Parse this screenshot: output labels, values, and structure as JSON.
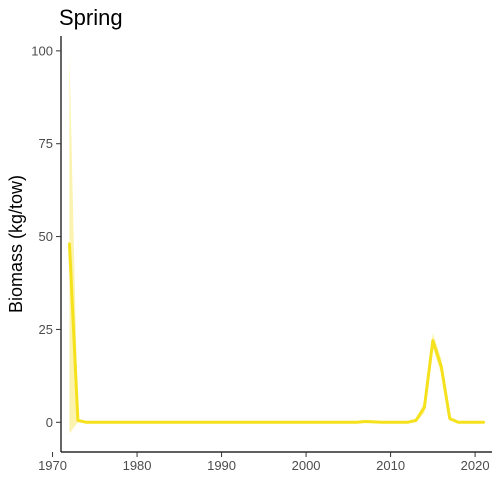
{
  "chart_data": {
    "type": "line",
    "title": "Spring",
    "xlabel": "",
    "ylabel": "Biomass (kg/tow)",
    "xlim": [
      1971,
      2022
    ],
    "ylim": [
      -8,
      104
    ],
    "x_ticks": [
      1970,
      1980,
      1990,
      2000,
      2010,
      2020
    ],
    "y_ticks": [
      0,
      25,
      50,
      75,
      100
    ],
    "grid": false,
    "legend": "none",
    "series": [
      {
        "color": "#f5e11c",
        "band_color": "#f8ea6c",
        "x": [
          1972,
          1973,
          1974,
          1975,
          1976,
          1977,
          1978,
          1979,
          1980,
          1981,
          1982,
          1983,
          1984,
          1985,
          1986,
          1987,
          1988,
          1989,
          1990,
          1991,
          1992,
          1993,
          1994,
          1995,
          1996,
          1997,
          1998,
          1999,
          2000,
          2001,
          2002,
          2003,
          2004,
          2005,
          2006,
          2007,
          2008,
          2009,
          2010,
          2011,
          2012,
          2013,
          2014,
          2015,
          2016,
          2017,
          2018,
          2019,
          2020,
          2021
        ],
        "y": [
          48,
          0.5,
          0,
          0,
          0,
          0,
          0,
          0,
          0,
          0,
          0,
          0,
          0,
          0,
          0,
          0,
          0,
          0,
          0,
          0,
          0,
          0,
          0,
          0,
          0,
          0,
          0,
          0,
          0,
          0,
          0,
          0,
          0,
          0,
          0,
          0.2,
          0.1,
          0,
          0,
          0,
          0,
          0.5,
          4,
          22,
          15,
          1,
          0,
          0,
          0,
          0
        ],
        "lower": [
          -3,
          0,
          0,
          0,
          0,
          0,
          0,
          0,
          0,
          0,
          0,
          0,
          0,
          0,
          0,
          0,
          0,
          0,
          0,
          0,
          0,
          0,
          0,
          0,
          0,
          0,
          0,
          0,
          0,
          0,
          0,
          0,
          0,
          0,
          0,
          0,
          0,
          0,
          0,
          0,
          0,
          0,
          2.5,
          20,
          13,
          0.5,
          0,
          0,
          0,
          0
        ],
        "upper": [
          99,
          1,
          0,
          0,
          0,
          0,
          0,
          0,
          0,
          0,
          0,
          0,
          0,
          0,
          0,
          0,
          0,
          0,
          0,
          0,
          0,
          0,
          0,
          0,
          0,
          0,
          0,
          0,
          0,
          0,
          0,
          0,
          0,
          0,
          0,
          0.4,
          0.2,
          0,
          0,
          0,
          0,
          0.8,
          5.5,
          24,
          17,
          1.5,
          0,
          0,
          0,
          0
        ]
      }
    ]
  }
}
